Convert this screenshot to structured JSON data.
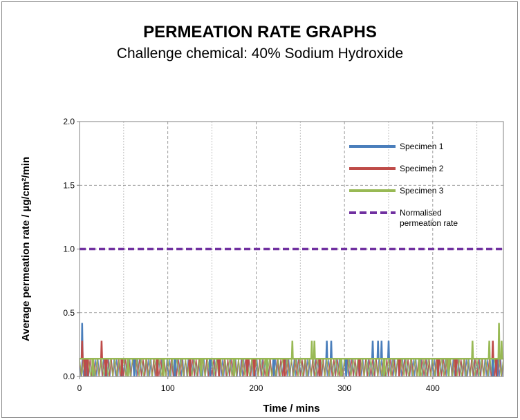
{
  "title": "PERMEATION RATE GRAPHS",
  "subtitle": "Challenge chemical: 40% Sodium Hydroxide",
  "chart_data": {
    "type": "line",
    "xlabel": "Time / mins",
    "ylabel": "Average  permeation  rate  /  µg/cm²/min",
    "xlim": [
      0,
      480
    ],
    "ylim": [
      0,
      2.0
    ],
    "xticks": [
      0,
      100,
      200,
      300,
      400
    ],
    "yticks": [
      "0.0",
      "0.5",
      "1.0",
      "1.5",
      "2.0"
    ],
    "grid": true,
    "legend_position": "top-right",
    "series": [
      {
        "name": "Specimen 1",
        "color": "#4a7ebb",
        "base": 0.14,
        "spikes": [
          [
            3,
            0.42
          ],
          [
            7,
            0.0
          ],
          [
            62,
            0.0
          ],
          [
            108,
            0.0
          ],
          [
            148,
            0.0
          ],
          [
            220,
            0.0
          ],
          [
            280,
            0.28
          ],
          [
            285,
            0.28
          ],
          [
            302,
            0.0
          ],
          [
            332,
            0.28
          ],
          [
            338,
            0.28
          ],
          [
            342,
            0.28
          ],
          [
            350,
            0.28
          ],
          [
            468,
            0.0
          ],
          [
            473,
            0.0
          ]
        ]
      },
      {
        "name": "Specimen 2",
        "color": "#be4b48",
        "base": 0.14,
        "spikes": [
          [
            3,
            0.28
          ],
          [
            6,
            0.0
          ],
          [
            9,
            0.0
          ],
          [
            25,
            0.28
          ],
          [
            30,
            0.0
          ],
          [
            48,
            0.0
          ],
          [
            88,
            0.0
          ],
          [
            125,
            0.0
          ],
          [
            158,
            0.0
          ],
          [
            190,
            0.0
          ],
          [
            198,
            0.0
          ],
          [
            232,
            0.0
          ],
          [
            272,
            0.0
          ],
          [
            317,
            0.0
          ],
          [
            362,
            0.0
          ],
          [
            406,
            0.0
          ],
          [
            426,
            0.0
          ],
          [
            468,
            0.28
          ],
          [
            472,
            0.0
          ]
        ]
      },
      {
        "name": "Specimen 3",
        "color": "#98b954",
        "base": 0.14,
        "spikes": [
          [
            15,
            0.0
          ],
          [
            55,
            0.0
          ],
          [
            95,
            0.0
          ],
          [
            138,
            0.0
          ],
          [
            175,
            0.0
          ],
          [
            212,
            0.0
          ],
          [
            241,
            0.28
          ],
          [
            263,
            0.28
          ],
          [
            266,
            0.28
          ],
          [
            296,
            0.0
          ],
          [
            345,
            0.0
          ],
          [
            385,
            0.0
          ],
          [
            418,
            0.0
          ],
          [
            445,
            0.28
          ],
          [
            464,
            0.28
          ],
          [
            475,
            0.42
          ],
          [
            478,
            0.28
          ]
        ]
      },
      {
        "name": "Normalised permeation rate",
        "color": "#7030a0",
        "dashed": true,
        "x": [
          0,
          480
        ],
        "values": [
          1.0,
          1.0
        ]
      }
    ],
    "legend": [
      {
        "label": "Specimen 1",
        "color": "#4a7ebb",
        "dashed": false
      },
      {
        "label": "Specimen 2",
        "color": "#be4b48",
        "dashed": false
      },
      {
        "label": "Specimen 3",
        "color": "#98b954",
        "dashed": false
      },
      {
        "label": "Normalised",
        "label2": "permeation rate",
        "color": "#7030a0",
        "dashed": true
      }
    ]
  }
}
